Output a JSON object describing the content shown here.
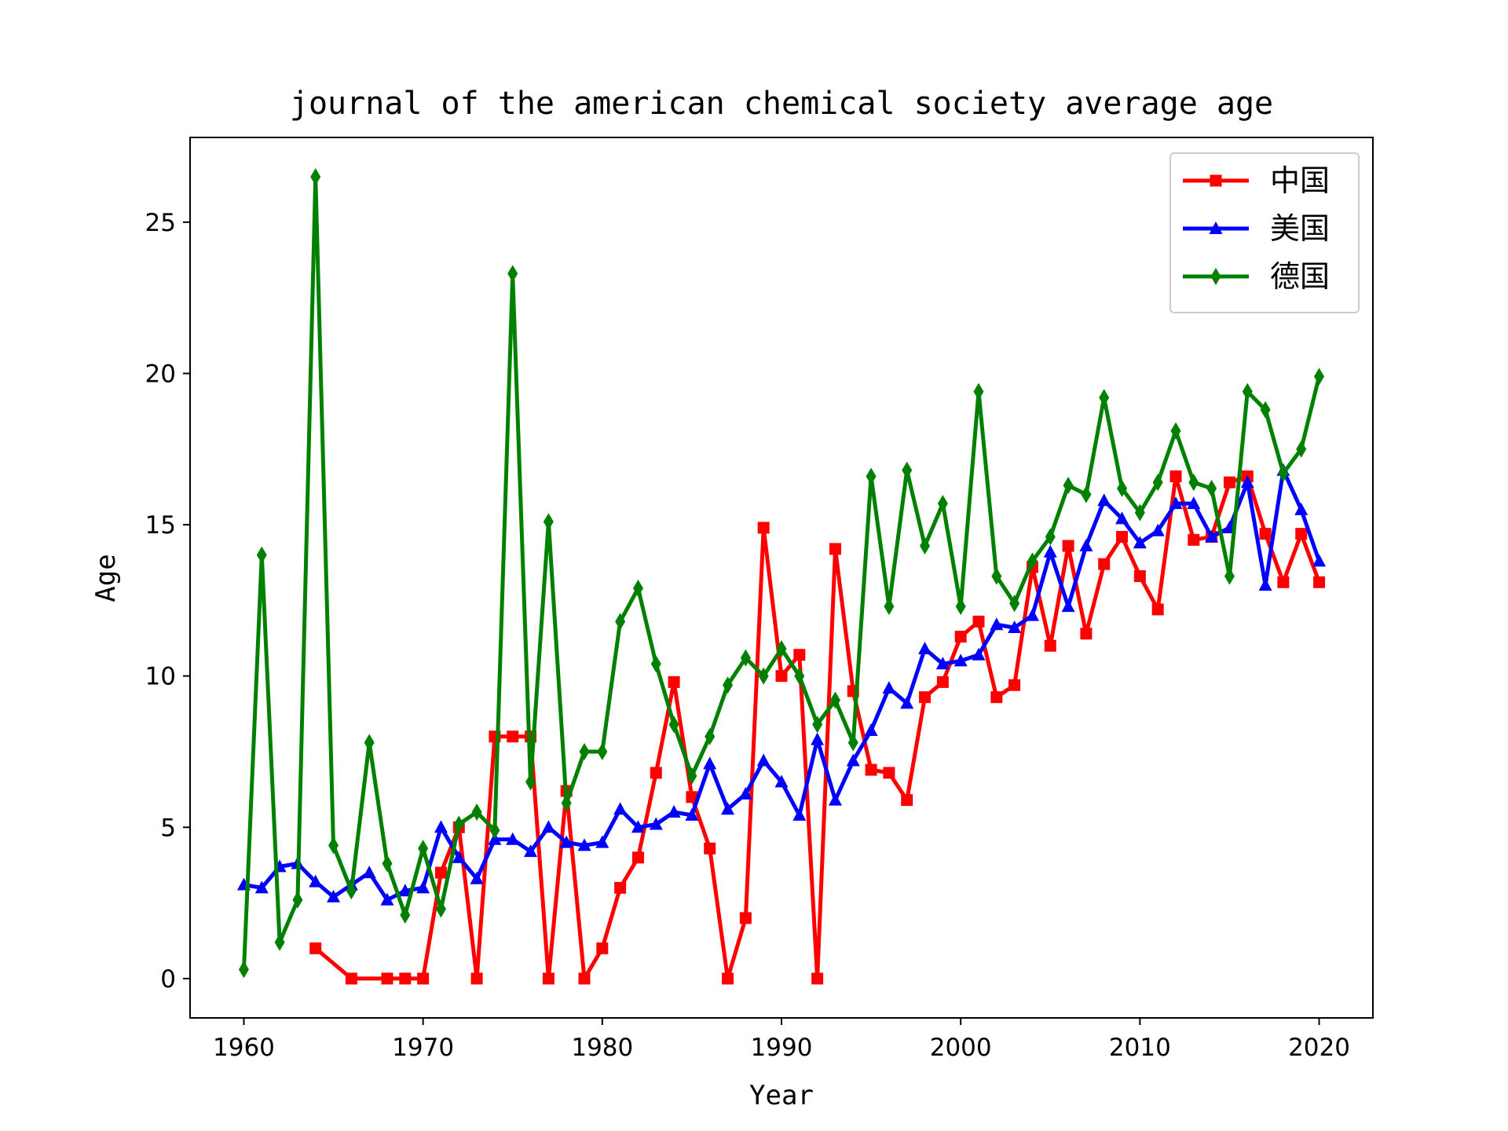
{
  "chart_data": {
    "type": "line",
    "title": "journal of the american chemical society average age",
    "xlabel": "Year",
    "ylabel": "Age",
    "xlim": [
      1957,
      2023
    ],
    "ylim": [
      -1.3,
      27.8
    ],
    "xticks": [
      1960,
      1970,
      1980,
      1990,
      2000,
      2010,
      2020
    ],
    "yticks": [
      0,
      5,
      10,
      15,
      20,
      25
    ],
    "grid": false,
    "legend_position": "top-right",
    "series": [
      {
        "name": "中国",
        "color": "#ff0000",
        "marker": "square",
        "points": [
          [
            1964,
            1.0
          ],
          [
            1966,
            0.0
          ],
          [
            1968,
            0.0
          ],
          [
            1969,
            0.0
          ],
          [
            1970,
            0.0
          ],
          [
            1971,
            3.5
          ],
          [
            1972,
            5.0
          ],
          [
            1973,
            0.0
          ],
          [
            1974,
            8.0
          ],
          [
            1975,
            8.0
          ],
          [
            1976,
            8.0
          ],
          [
            1977,
            0.0
          ],
          [
            1978,
            6.2
          ],
          [
            1979,
            0.0
          ],
          [
            1980,
            1.0
          ],
          [
            1981,
            3.0
          ],
          [
            1982,
            4.0
          ],
          [
            1983,
            6.8
          ],
          [
            1984,
            9.8
          ],
          [
            1985,
            6.0
          ],
          [
            1986,
            4.3
          ],
          [
            1987,
            0.0
          ],
          [
            1988,
            2.0
          ],
          [
            1989,
            14.9
          ],
          [
            1990,
            10.0
          ],
          [
            1991,
            10.7
          ],
          [
            1992,
            0.0
          ],
          [
            1993,
            14.2
          ],
          [
            1994,
            9.5
          ],
          [
            1995,
            6.9
          ],
          [
            1996,
            6.8
          ],
          [
            1997,
            5.9
          ],
          [
            1998,
            9.3
          ],
          [
            1999,
            9.8
          ],
          [
            2000,
            11.3
          ],
          [
            2001,
            11.8
          ],
          [
            2002,
            9.3
          ],
          [
            2003,
            9.7
          ],
          [
            2004,
            13.6
          ],
          [
            2005,
            11.0
          ],
          [
            2006,
            14.3
          ],
          [
            2007,
            11.4
          ],
          [
            2008,
            13.7
          ],
          [
            2009,
            14.6
          ],
          [
            2010,
            13.3
          ],
          [
            2011,
            12.2
          ],
          [
            2012,
            16.6
          ],
          [
            2013,
            14.5
          ],
          [
            2014,
            14.6
          ],
          [
            2015,
            16.4
          ],
          [
            2016,
            16.6
          ],
          [
            2017,
            14.7
          ],
          [
            2018,
            13.1
          ],
          [
            2019,
            14.7
          ],
          [
            2020,
            13.1
          ]
        ]
      },
      {
        "name": "美国",
        "color": "#0000ff",
        "marker": "triangle",
        "points": [
          [
            1960,
            3.1
          ],
          [
            1961,
            3.0
          ],
          [
            1962,
            3.7
          ],
          [
            1963,
            3.8
          ],
          [
            1964,
            3.2
          ],
          [
            1965,
            2.7
          ],
          [
            1966,
            3.1
          ],
          [
            1967,
            3.5
          ],
          [
            1968,
            2.6
          ],
          [
            1969,
            2.9
          ],
          [
            1970,
            3.0
          ],
          [
            1971,
            5.0
          ],
          [
            1972,
            4.0
          ],
          [
            1973,
            3.3
          ],
          [
            1974,
            4.6
          ],
          [
            1975,
            4.6
          ],
          [
            1976,
            4.2
          ],
          [
            1977,
            5.0
          ],
          [
            1978,
            4.5
          ],
          [
            1979,
            4.4
          ],
          [
            1980,
            4.5
          ],
          [
            1981,
            5.6
          ],
          [
            1982,
            5.0
          ],
          [
            1983,
            5.1
          ],
          [
            1984,
            5.5
          ],
          [
            1985,
            5.4
          ],
          [
            1986,
            7.1
          ],
          [
            1987,
            5.6
          ],
          [
            1988,
            6.1
          ],
          [
            1989,
            7.2
          ],
          [
            1990,
            6.5
          ],
          [
            1991,
            5.4
          ],
          [
            1992,
            7.9
          ],
          [
            1993,
            5.9
          ],
          [
            1994,
            7.2
          ],
          [
            1995,
            8.2
          ],
          [
            1996,
            9.6
          ],
          [
            1997,
            9.1
          ],
          [
            1998,
            10.9
          ],
          [
            1999,
            10.4
          ],
          [
            2000,
            10.5
          ],
          [
            2001,
            10.7
          ],
          [
            2002,
            11.7
          ],
          [
            2003,
            11.6
          ],
          [
            2004,
            12.0
          ],
          [
            2005,
            14.1
          ],
          [
            2006,
            12.3
          ],
          [
            2007,
            14.3
          ],
          [
            2008,
            15.8
          ],
          [
            2009,
            15.2
          ],
          [
            2010,
            14.4
          ],
          [
            2011,
            14.8
          ],
          [
            2012,
            15.7
          ],
          [
            2013,
            15.7
          ],
          [
            2014,
            14.6
          ],
          [
            2015,
            14.9
          ],
          [
            2016,
            16.4
          ],
          [
            2017,
            13.0
          ],
          [
            2018,
            16.8
          ],
          [
            2019,
            15.5
          ],
          [
            2020,
            13.8
          ]
        ]
      },
      {
        "name": "德国",
        "color": "#008000",
        "marker": "diamond",
        "points": [
          [
            1960,
            0.3
          ],
          [
            1961,
            14.0
          ],
          [
            1962,
            1.2
          ],
          [
            1963,
            2.6
          ],
          [
            1964,
            26.5
          ],
          [
            1965,
            4.4
          ],
          [
            1966,
            2.9
          ],
          [
            1967,
            7.8
          ],
          [
            1968,
            3.8
          ],
          [
            1969,
            2.1
          ],
          [
            1970,
            4.3
          ],
          [
            1971,
            2.3
          ],
          [
            1972,
            5.1
          ],
          [
            1973,
            5.5
          ],
          [
            1974,
            4.9
          ],
          [
            1975,
            23.3
          ],
          [
            1976,
            6.5
          ],
          [
            1977,
            15.1
          ],
          [
            1978,
            5.8
          ],
          [
            1979,
            7.5
          ],
          [
            1980,
            7.5
          ],
          [
            1981,
            11.8
          ],
          [
            1982,
            12.9
          ],
          [
            1983,
            10.4
          ],
          [
            1984,
            8.4
          ],
          [
            1985,
            6.7
          ],
          [
            1986,
            8.0
          ],
          [
            1987,
            9.7
          ],
          [
            1988,
            10.6
          ],
          [
            1989,
            10.0
          ],
          [
            1990,
            10.9
          ],
          [
            1991,
            10.0
          ],
          [
            1992,
            8.4
          ],
          [
            1993,
            9.2
          ],
          [
            1994,
            7.8
          ],
          [
            1995,
            16.6
          ],
          [
            1996,
            12.3
          ],
          [
            1997,
            16.8
          ],
          [
            1998,
            14.3
          ],
          [
            1999,
            15.7
          ],
          [
            2000,
            12.3
          ],
          [
            2001,
            19.4
          ],
          [
            2002,
            13.3
          ],
          [
            2003,
            12.4
          ],
          [
            2004,
            13.8
          ],
          [
            2005,
            14.6
          ],
          [
            2006,
            16.3
          ],
          [
            2007,
            16.0
          ],
          [
            2008,
            19.2
          ],
          [
            2009,
            16.2
          ],
          [
            2010,
            15.4
          ],
          [
            2011,
            16.4
          ],
          [
            2012,
            18.1
          ],
          [
            2013,
            16.4
          ],
          [
            2014,
            16.2
          ],
          [
            2015,
            13.3
          ],
          [
            2016,
            19.4
          ],
          [
            2017,
            18.8
          ],
          [
            2018,
            16.7
          ],
          [
            2019,
            17.5
          ],
          [
            2020,
            19.9
          ]
        ]
      }
    ]
  }
}
